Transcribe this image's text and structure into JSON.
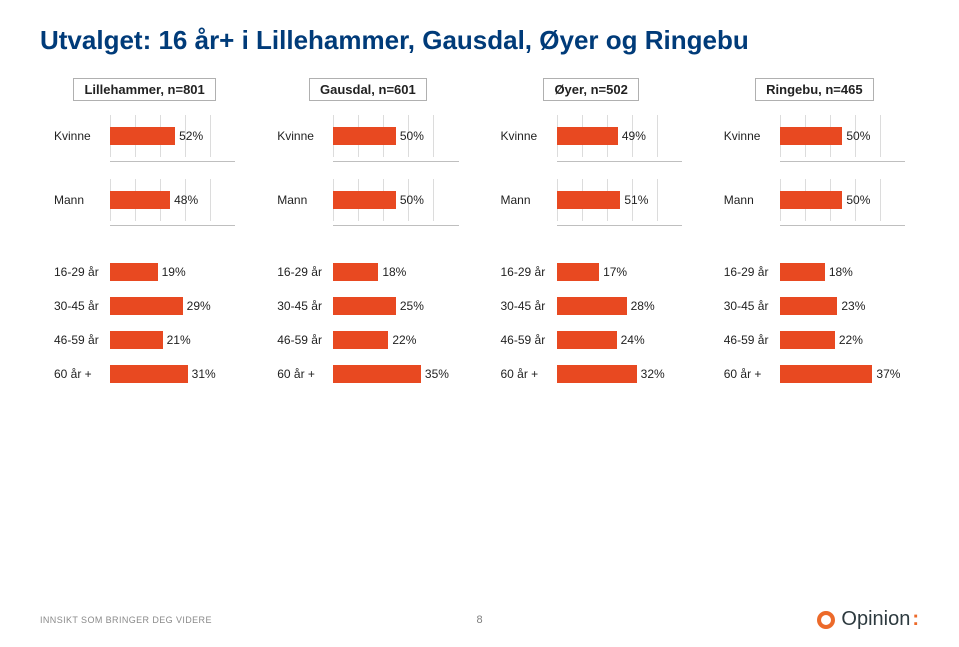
{
  "title": "Utvalget: 16 år+ i Lillehammer, Gausdal, Øyer og Ringebu",
  "colors": {
    "bar": "#e84921",
    "text": "#222222",
    "title": "#003b79",
    "grid": "#dcdcdc"
  },
  "columns": [
    {
      "header": "Lillehammer, n=801"
    },
    {
      "header": "Gausdal, n=601"
    },
    {
      "header": "Øyer, n=502"
    },
    {
      "header": "Ringebu, n=465"
    }
  ],
  "section_gender": {
    "scale_max": 100,
    "ticks_pct": [
      0,
      20,
      40,
      60,
      80
    ],
    "cols": [
      [
        {
          "label": "Kvinne",
          "value": 52,
          "text": "52%"
        },
        {
          "label": "Mann",
          "value": 48,
          "text": "48%"
        }
      ],
      [
        {
          "label": "Kvinne",
          "value": 50,
          "text": "50%"
        },
        {
          "label": "Mann",
          "value": 50,
          "text": "50%"
        }
      ],
      [
        {
          "label": "Kvinne",
          "value": 49,
          "text": "49%"
        },
        {
          "label": "Mann",
          "value": 51,
          "text": "51%"
        }
      ],
      [
        {
          "label": "Kvinne",
          "value": 50,
          "text": "50%"
        },
        {
          "label": "Mann",
          "value": 50,
          "text": "50%"
        }
      ]
    ]
  },
  "section_age": {
    "scale_max": 50,
    "cols": [
      [
        {
          "label": "16-29 år",
          "value": 19,
          "text": "19%"
        },
        {
          "label": "30-45 år",
          "value": 29,
          "text": "29%"
        },
        {
          "label": "46-59 år",
          "value": 21,
          "text": "21%"
        },
        {
          "label": "60 år +",
          "value": 31,
          "text": "31%"
        }
      ],
      [
        {
          "label": "16-29 år",
          "value": 18,
          "text": "18%"
        },
        {
          "label": "30-45 år",
          "value": 25,
          "text": "25%"
        },
        {
          "label": "46-59 år",
          "value": 22,
          "text": "22%"
        },
        {
          "label": "60 år +",
          "value": 35,
          "text": "35%"
        }
      ],
      [
        {
          "label": "16-29 år",
          "value": 17,
          "text": "17%"
        },
        {
          "label": "30-45 år",
          "value": 28,
          "text": "28%"
        },
        {
          "label": "46-59 år",
          "value": 24,
          "text": "24%"
        },
        {
          "label": "60 år +",
          "value": 32,
          "text": "32%"
        }
      ],
      [
        {
          "label": "16-29 år",
          "value": 18,
          "text": "18%"
        },
        {
          "label": "30-45 år",
          "value": 23,
          "text": "23%"
        },
        {
          "label": "46-59 år",
          "value": 22,
          "text": "22%"
        },
        {
          "label": "60 år +",
          "value": 37,
          "text": "37%"
        }
      ]
    ]
  },
  "footer": {
    "left": "INNSIKT SOM BRINGER DEG VIDERE",
    "page": "8",
    "brand": "Opinion"
  }
}
